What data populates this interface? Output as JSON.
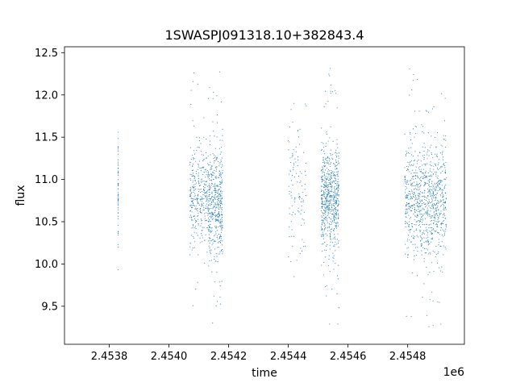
{
  "chart_data": {
    "type": "scatter",
    "title": "1SWASPJ091318.10+382843.4",
    "xlabel": "time",
    "ylabel": "flux",
    "x_offset_label": "1e6",
    "xlim": [
      2.45365,
      2.45499
    ],
    "ylim": [
      9.05,
      12.57
    ],
    "x_ticks": [
      2.4538,
      2.454,
      2.4542,
      2.4544,
      2.4546,
      2.4548
    ],
    "x_tick_labels": [
      "2.4538",
      "2.4540",
      "2.4542",
      "2.4544",
      "2.4546",
      "2.4548"
    ],
    "y_ticks": [
      9.5,
      10.0,
      10.5,
      11.0,
      11.5,
      12.0,
      12.5
    ],
    "y_tick_labels": [
      "9.5",
      "10.0",
      "10.5",
      "11.0",
      "11.5",
      "12.0",
      "12.5"
    ],
    "grid": false,
    "marker_color": "#1f77b4",
    "series": [
      {
        "clusters": [
          {
            "x_start": 2.45383,
            "x_end": 2.45383,
            "n": 60,
            "center": 10.85,
            "sd": 0.35,
            "min": 9.75,
            "max": 11.7
          },
          {
            "x_start": 2.45407,
            "x_end": 2.45413,
            "n": 320,
            "center": 10.8,
            "sd": 0.3,
            "min": 9.4,
            "max": 12.35
          },
          {
            "x_start": 2.45413,
            "x_end": 2.45418,
            "n": 480,
            "center": 10.7,
            "sd": 0.32,
            "min": 9.25,
            "max": 12.35
          },
          {
            "x_start": 2.4544,
            "x_end": 2.45446,
            "n": 110,
            "center": 10.9,
            "sd": 0.45,
            "min": 9.85,
            "max": 11.9
          },
          {
            "x_start": 2.45451,
            "x_end": 2.45457,
            "n": 650,
            "center": 10.75,
            "sd": 0.3,
            "min": 9.28,
            "max": 12.32
          },
          {
            "x_start": 2.45479,
            "x_end": 2.45493,
            "n": 900,
            "center": 10.75,
            "sd": 0.32,
            "min": 9.22,
            "max": 12.38
          }
        ]
      }
    ]
  }
}
